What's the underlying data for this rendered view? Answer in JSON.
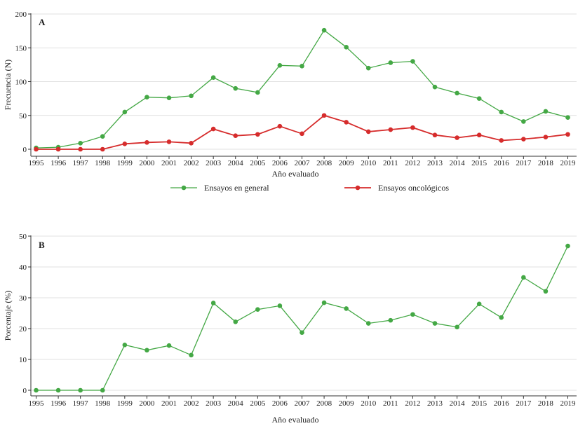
{
  "chart_data": [
    {
      "type": "line",
      "panel_label": "A",
      "xlabel": "Año evaluado",
      "ylabel": "Frecuencia (N)",
      "ylim": [
        0,
        200
      ],
      "yticks": [
        0,
        50,
        100,
        150,
        200
      ],
      "grid": "horizontal",
      "legend_position": "bottom",
      "x": [
        1995,
        1996,
        1997,
        1998,
        1999,
        2000,
        2001,
        2002,
        2003,
        2004,
        2005,
        2006,
        2007,
        2008,
        2009,
        2010,
        2011,
        2012,
        2013,
        2014,
        2015,
        2016,
        2017,
        2018,
        2019
      ],
      "series": [
        {
          "name": "Ensayos en general",
          "color": "#44a845",
          "values": [
            2,
            3,
            9,
            19,
            55,
            77,
            76,
            79,
            106,
            90,
            84,
            124,
            123,
            176,
            151,
            120,
            128,
            130,
            92,
            83,
            75,
            55,
            41,
            56,
            47
          ]
        },
        {
          "name": "Ensayos oncológicos",
          "color": "#d62c2c",
          "values": [
            0,
            0,
            0,
            0,
            8,
            10,
            11,
            9,
            30,
            20,
            22,
            34,
            23,
            50,
            40,
            26,
            29,
            32,
            21,
            17,
            21,
            13,
            15,
            18,
            22
          ]
        }
      ]
    },
    {
      "type": "line",
      "panel_label": "B",
      "xlabel": "Año evaluado",
      "ylabel": "Porcentaje (%)",
      "ylim": [
        0,
        50
      ],
      "yticks": [
        0,
        10,
        20,
        30,
        40,
        50
      ],
      "grid": "horizontal",
      "x": [
        1995,
        1996,
        1997,
        1998,
        1999,
        2000,
        2001,
        2002,
        2003,
        2004,
        2005,
        2006,
        2007,
        2008,
        2009,
        2010,
        2011,
        2012,
        2013,
        2014,
        2015,
        2016,
        2017,
        2018,
        2019
      ],
      "series": [
        {
          "color": "#44a845",
          "values": [
            0,
            0,
            0,
            0,
            14.7,
            13,
            14.5,
            11.4,
            28.3,
            22.2,
            26.2,
            27.4,
            18.7,
            28.4,
            26.5,
            21.7,
            22.7,
            24.6,
            21.7,
            20.5,
            28,
            23.6,
            36.6,
            32.1,
            46.8
          ]
        }
      ]
    }
  ]
}
